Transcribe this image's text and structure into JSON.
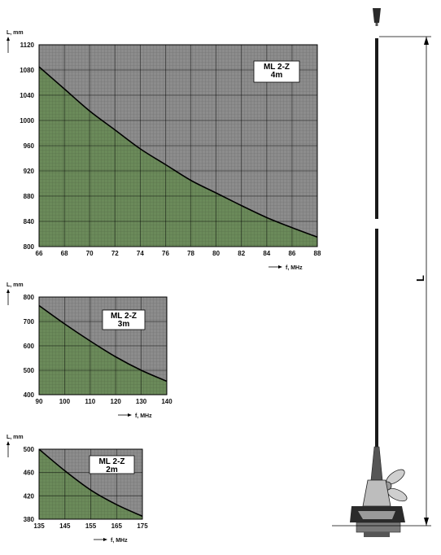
{
  "chart_data": [
    {
      "type": "area",
      "badge": [
        "ML 2-Z",
        "4m"
      ],
      "ylabel": "L, mm",
      "xlabel": "f, MHz",
      "xlim": [
        66,
        88
      ],
      "ylim": [
        800,
        1120
      ],
      "xticks": [
        66,
        68,
        70,
        72,
        74,
        76,
        78,
        80,
        82,
        84,
        86,
        88
      ],
      "yticks": [
        800,
        840,
        880,
        920,
        960,
        1000,
        1040,
        1080,
        1120
      ],
      "x": [
        66,
        68,
        70,
        72,
        74,
        76,
        78,
        80,
        82,
        84,
        86,
        88
      ],
      "y": [
        1085,
        1050,
        1015,
        985,
        955,
        930,
        905,
        885,
        865,
        846,
        830,
        815
      ],
      "colors": {
        "below": "#6b8a5a",
        "above": "#8c8c8c",
        "curve": "#000000"
      }
    },
    {
      "type": "area",
      "badge": [
        "ML 2-Z",
        "3m"
      ],
      "ylabel": "L, mm",
      "xlabel": "f, MHz",
      "xlim": [
        90,
        140
      ],
      "ylim": [
        400,
        800
      ],
      "xticks": [
        90,
        100,
        110,
        120,
        130,
        140
      ],
      "yticks": [
        400,
        500,
        600,
        700,
        800
      ],
      "x": [
        90,
        100,
        110,
        120,
        130,
        140
      ],
      "y": [
        765,
        690,
        620,
        555,
        500,
        455
      ],
      "colors": {
        "below": "#6b8a5a",
        "above": "#8c8c8c",
        "curve": "#000000"
      }
    },
    {
      "type": "area",
      "badge": [
        "ML 2-Z",
        "2m"
      ],
      "ylabel": "L, mm",
      "xlabel": "f, MHz",
      "xlim": [
        135,
        175
      ],
      "ylim": [
        380,
        500
      ],
      "xticks": [
        135,
        145,
        155,
        165,
        175
      ],
      "yticks": [
        380,
        420,
        460,
        500
      ],
      "x": [
        135,
        145,
        155,
        165,
        175
      ],
      "y": [
        500,
        463,
        430,
        405,
        385
      ],
      "colors": {
        "below": "#6b8a5a",
        "above": "#8c8c8c",
        "curve": "#000000"
      }
    }
  ],
  "antenna": {
    "dimension_label": "L"
  }
}
